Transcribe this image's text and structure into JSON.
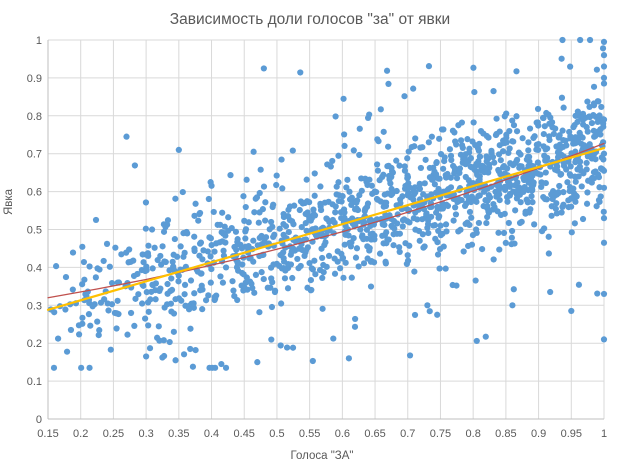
{
  "chart_data": {
    "type": "scatter",
    "title": "Зависимость доли голосов \"за\" от явки",
    "xlabel": "Голоса \"ЗА\"",
    "ylabel": "Явка",
    "xlim": [
      0.15,
      1
    ],
    "ylim": [
      0,
      1
    ],
    "x_tick_values": [
      0.15,
      0.2,
      0.25,
      0.3,
      0.35,
      0.4,
      0.45,
      0.5,
      0.55,
      0.6,
      0.65,
      0.7,
      0.75,
      0.8,
      0.85,
      0.9,
      0.95,
      1
    ],
    "x_tick_labels": [
      "0.15",
      "0.2",
      "0.25",
      "0.3",
      "0.35",
      "0.4",
      "0.45",
      "0.5",
      "0.55",
      "0.6",
      "0.65",
      "0.7",
      "0.75",
      "0.8",
      "0.85",
      "0.9",
      "0.95",
      "1"
    ],
    "y_tick_values": [
      0,
      0.1,
      0.2,
      0.3,
      0.4,
      0.5,
      0.6,
      0.7,
      0.8,
      0.9,
      1
    ],
    "y_tick_labels": [
      "0",
      "0.1",
      "0.2",
      "0.3",
      "0.4",
      "0.5",
      "0.6",
      "0.7",
      "0.8",
      "0.9",
      "1"
    ],
    "grid": true,
    "legend": "none",
    "colors": {
      "points": "#5B9BD5",
      "trendline_linear": "#FFC000",
      "trendline_polynomial": "#C0504D",
      "gridline": "#D9D9D9",
      "axis_line": "#BFBFBF",
      "text": "#595959",
      "background": "#FFFFFF"
    },
    "point_radius": 3.1,
    "series": [
      {
        "name": "turnout-vs-share",
        "marker": "circle",
        "approx_point_count": 1400,
        "relationship": "y ≈ 0.213 + 0.502·x + noise",
        "generator": {
          "seed": 20180318,
          "n": 1386,
          "x_min": 0.15,
          "x_max": 1,
          "x_power": 0.65,
          "slope": 0.502,
          "intercept": 0.213,
          "noise_sd_core": 0.08,
          "noise_sd_tail": 0.17,
          "tail_fraction": 0.16,
          "y_min_clamp": 0.135,
          "y_max_clamp": 1
        }
      }
    ],
    "explicit_points": [
      [
        1,
        0.995
      ],
      [
        1,
        0.96
      ],
      [
        1,
        0.93
      ],
      [
        1,
        0.9
      ],
      [
        1,
        0.885
      ],
      [
        1,
        0.79
      ],
      [
        1,
        0.7
      ],
      [
        1,
        0.655
      ],
      [
        1,
        0.61
      ],
      [
        1,
        0.53
      ],
      [
        1,
        0.465
      ],
      [
        1,
        0.33
      ],
      [
        1,
        0.21
      ],
      [
        0.48,
        0.925
      ],
      [
        0.27,
        0.745
      ],
      [
        0.35,
        0.71
      ],
      [
        0.95,
        0.285
      ],
      [
        0.86,
        0.3
      ],
      [
        0.73,
        0.3
      ],
      [
        0.745,
        0.275
      ],
      [
        0.3,
        0.165
      ],
      [
        0.345,
        0.155
      ],
      [
        0.415,
        0.145
      ],
      [
        0.47,
        0.15
      ],
      [
        0.61,
        0.16
      ]
    ],
    "trendlines": [
      {
        "name": "linear",
        "style": "solid",
        "width": 2.2,
        "points": [
          [
            0.15,
            0.288
          ],
          [
            1,
            0.715
          ]
        ]
      },
      {
        "name": "polynomial",
        "style": "solid",
        "width": 1.3,
        "points": [
          [
            0.15,
            0.32
          ],
          [
            0.225,
            0.343
          ],
          [
            0.3,
            0.368
          ],
          [
            0.375,
            0.396
          ],
          [
            0.45,
            0.426
          ],
          [
            0.525,
            0.459
          ],
          [
            0.6,
            0.494
          ],
          [
            0.675,
            0.532
          ],
          [
            0.75,
            0.573
          ],
          [
            0.825,
            0.616
          ],
          [
            0.9,
            0.662
          ],
          [
            0.95,
            0.694
          ],
          [
            1,
            0.727
          ]
        ]
      }
    ]
  }
}
